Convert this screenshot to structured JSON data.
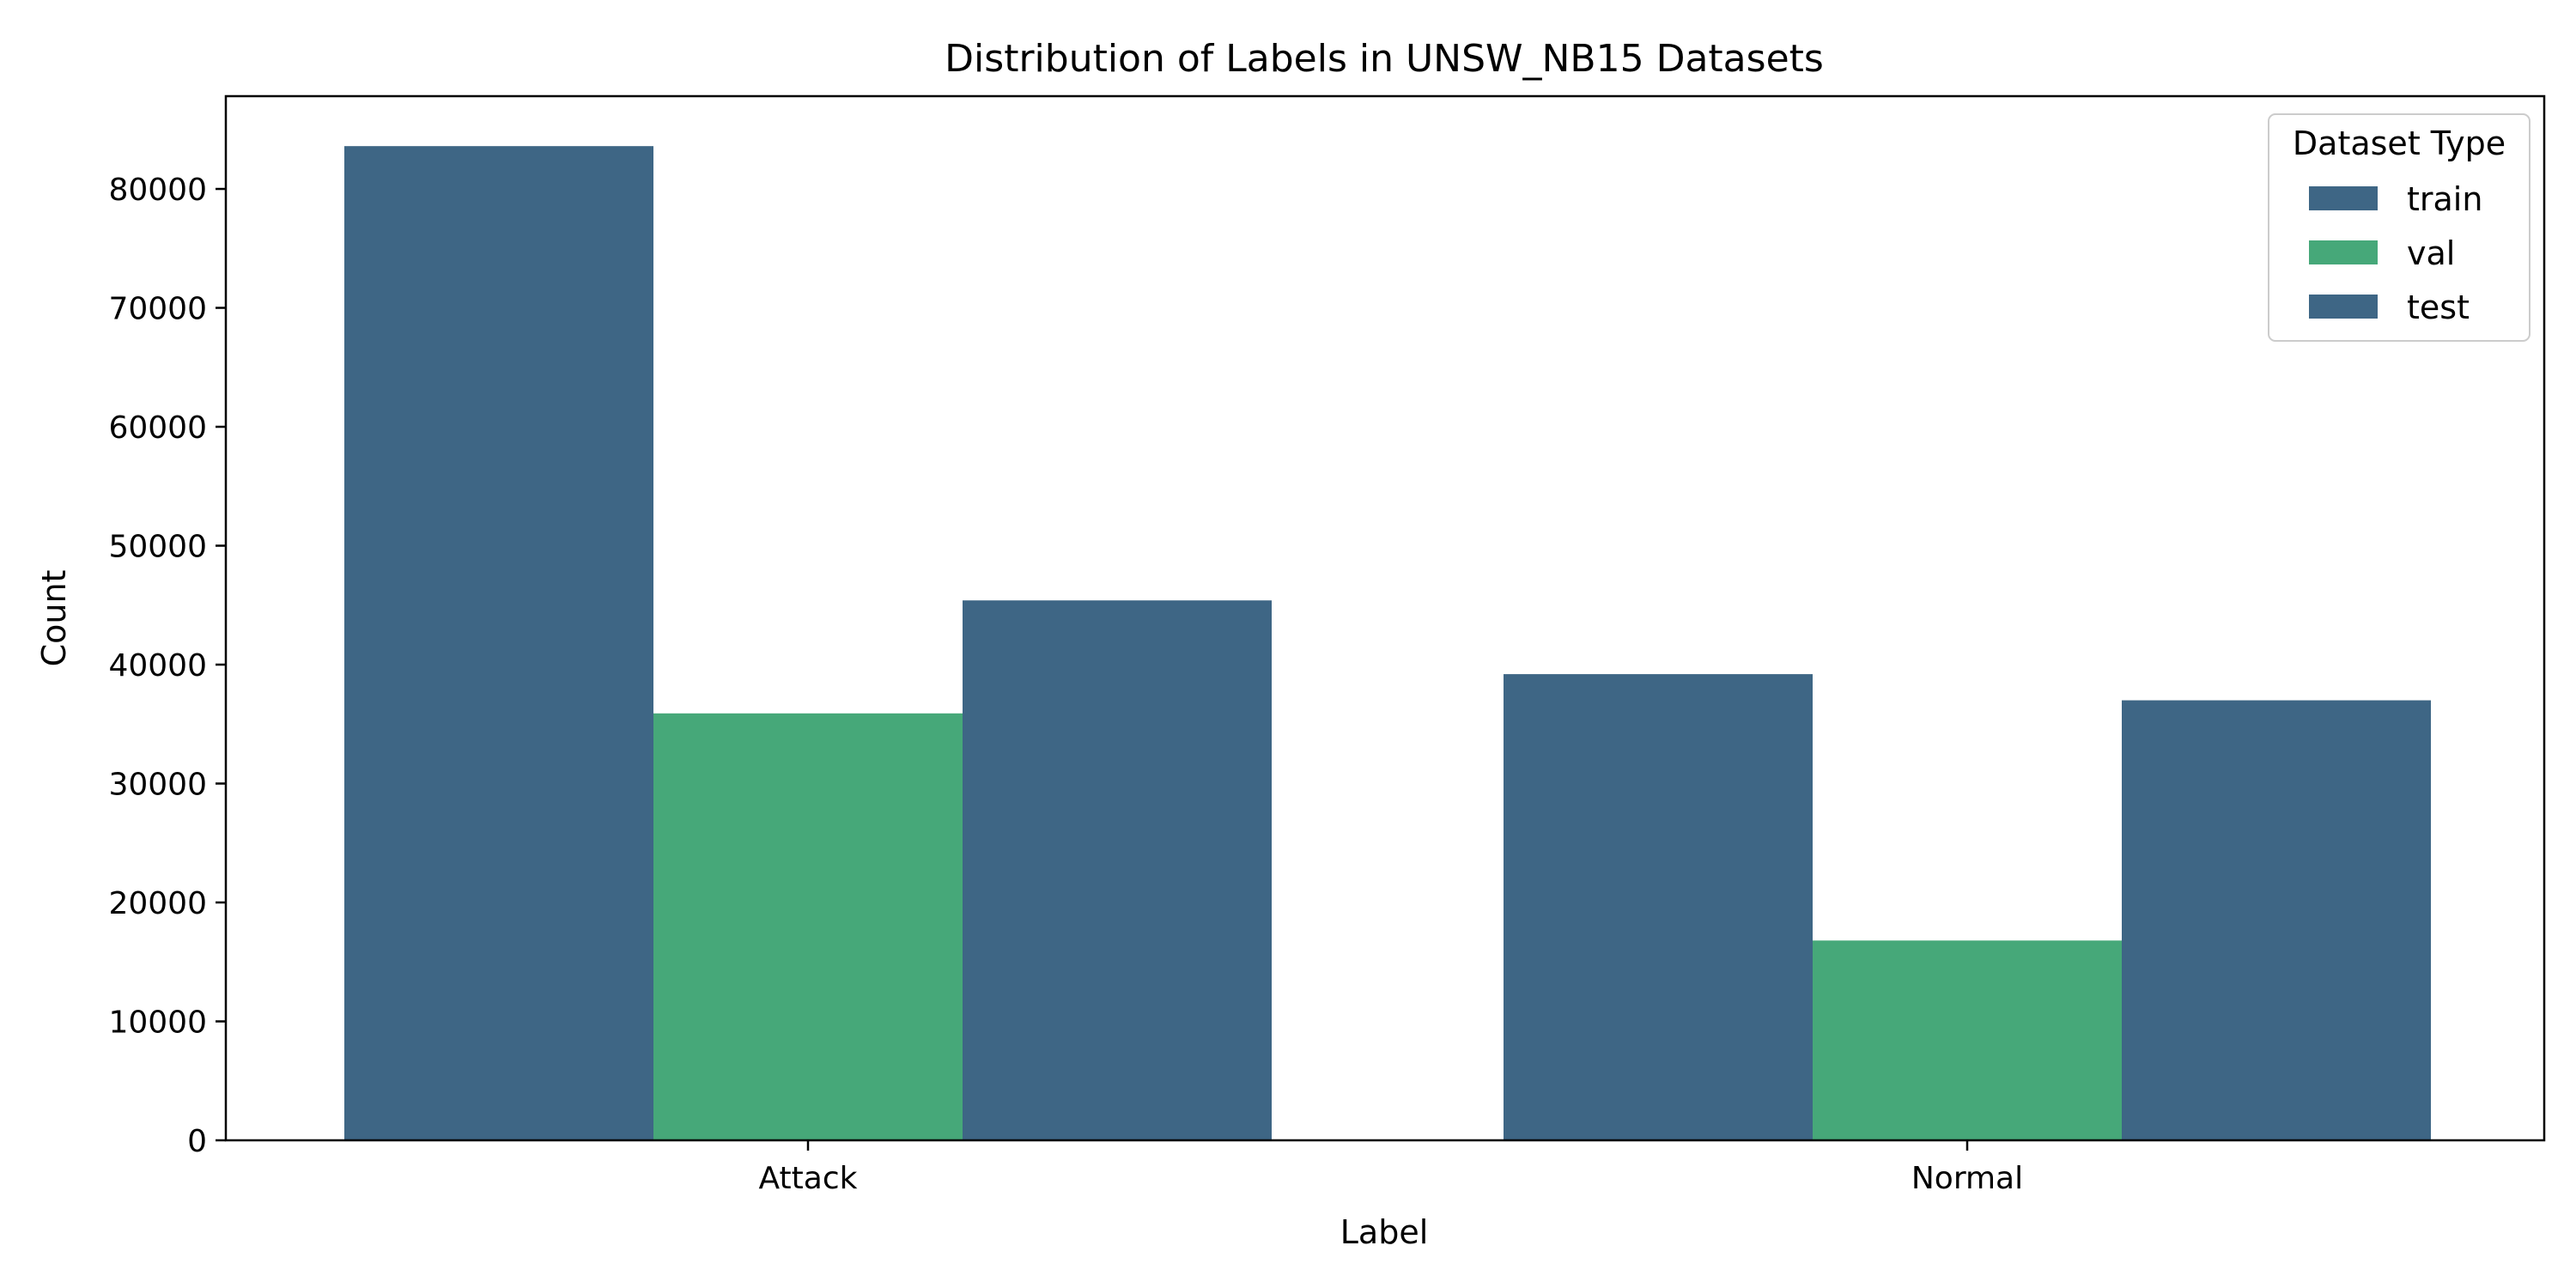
{
  "chart_data": {
    "type": "bar",
    "title": "Distribution of Labels in UNSW_NB15 Datasets",
    "xlabel": "Label",
    "ylabel": "Count",
    "categories": [
      "Attack",
      "Normal"
    ],
    "series": [
      {
        "name": "train",
        "values": [
          83600,
          39200
        ],
        "color": "#3e6685"
      },
      {
        "name": "val",
        "values": [
          35900,
          16800
        ],
        "color": "#46a879"
      },
      {
        "name": "test",
        "values": [
          45400,
          37000
        ],
        "color": "#3e6685"
      }
    ],
    "ylim": [
      0,
      87800
    ],
    "yticks": [
      0,
      10000,
      20000,
      30000,
      40000,
      50000,
      60000,
      70000,
      80000
    ],
    "grid": false,
    "legend": {
      "title": "Dataset Type",
      "position": "top-right"
    }
  }
}
